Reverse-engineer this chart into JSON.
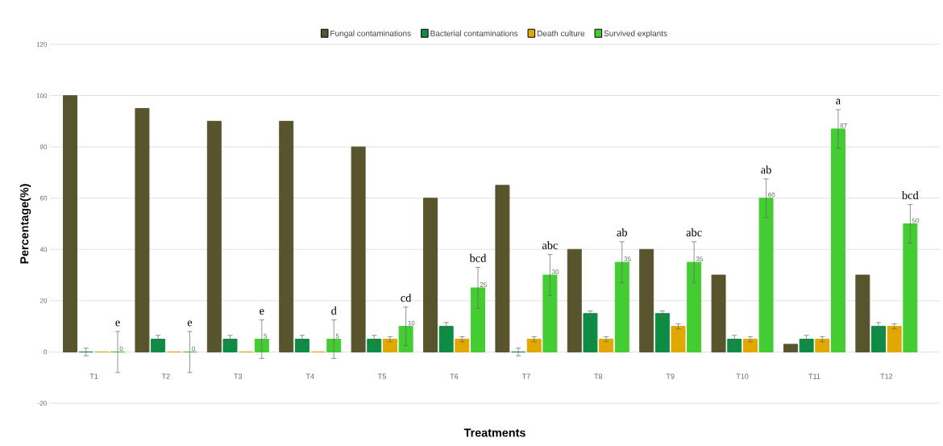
{
  "chart_data": {
    "type": "bar",
    "xlabel": "Treatments",
    "ylabel": "Percentage(%)",
    "categories": [
      "T1",
      "T2",
      "T3",
      "T4",
      "T5",
      "T6",
      "T7",
      "T8",
      "T9",
      "T10",
      "T11",
      "T12"
    ],
    "series": [
      {
        "name": "Fungal contaminations",
        "color": "#58552e",
        "values": [
          100,
          95,
          90,
          90,
          80,
          60,
          65,
          40,
          40,
          30,
          3,
          30
        ]
      },
      {
        "name": "Bacterial contaminations",
        "color": "#0e8c44",
        "values": [
          0,
          5,
          5,
          5,
          5,
          10,
          0,
          15,
          15,
          5,
          5,
          10
        ],
        "errors": [
          1.5,
          1.5,
          1.5,
          1.5,
          1.5,
          1.5,
          1.5,
          1,
          1,
          1.5,
          1.5,
          1.5
        ]
      },
      {
        "name": "Death culture",
        "color": "#e0a800",
        "values": [
          0,
          0,
          0,
          0,
          5,
          5,
          5,
          5,
          10,
          5,
          5,
          10
        ],
        "errors": [
          null,
          null,
          null,
          null,
          1,
          1,
          1,
          1,
          1,
          1,
          1,
          1
        ]
      },
      {
        "name": "Survived explants",
        "color": "#44cc33",
        "values": [
          0,
          0,
          5,
          5,
          10,
          25,
          30,
          35,
          35,
          60,
          87,
          50
        ],
        "errors": [
          8,
          8,
          7.5,
          7.5,
          7.5,
          8,
          8,
          8,
          8,
          7.5,
          7.5,
          7.5
        ],
        "value_labels": [
          "0",
          "0",
          "5",
          "5",
          "10",
          "25",
          "30",
          "35",
          "35",
          "60",
          "87",
          "50"
        ]
      }
    ],
    "ylim": [
      -20,
      120
    ],
    "yticks": [
      -20,
      0,
      20,
      40,
      60,
      80,
      100,
      120
    ],
    "grid": "y",
    "legend": "top",
    "annotations": [
      "e",
      "e",
      "e",
      "d",
      "cd",
      "bcd",
      "abc",
      "ab",
      "abc",
      "ab",
      "a",
      "bcd"
    ]
  }
}
